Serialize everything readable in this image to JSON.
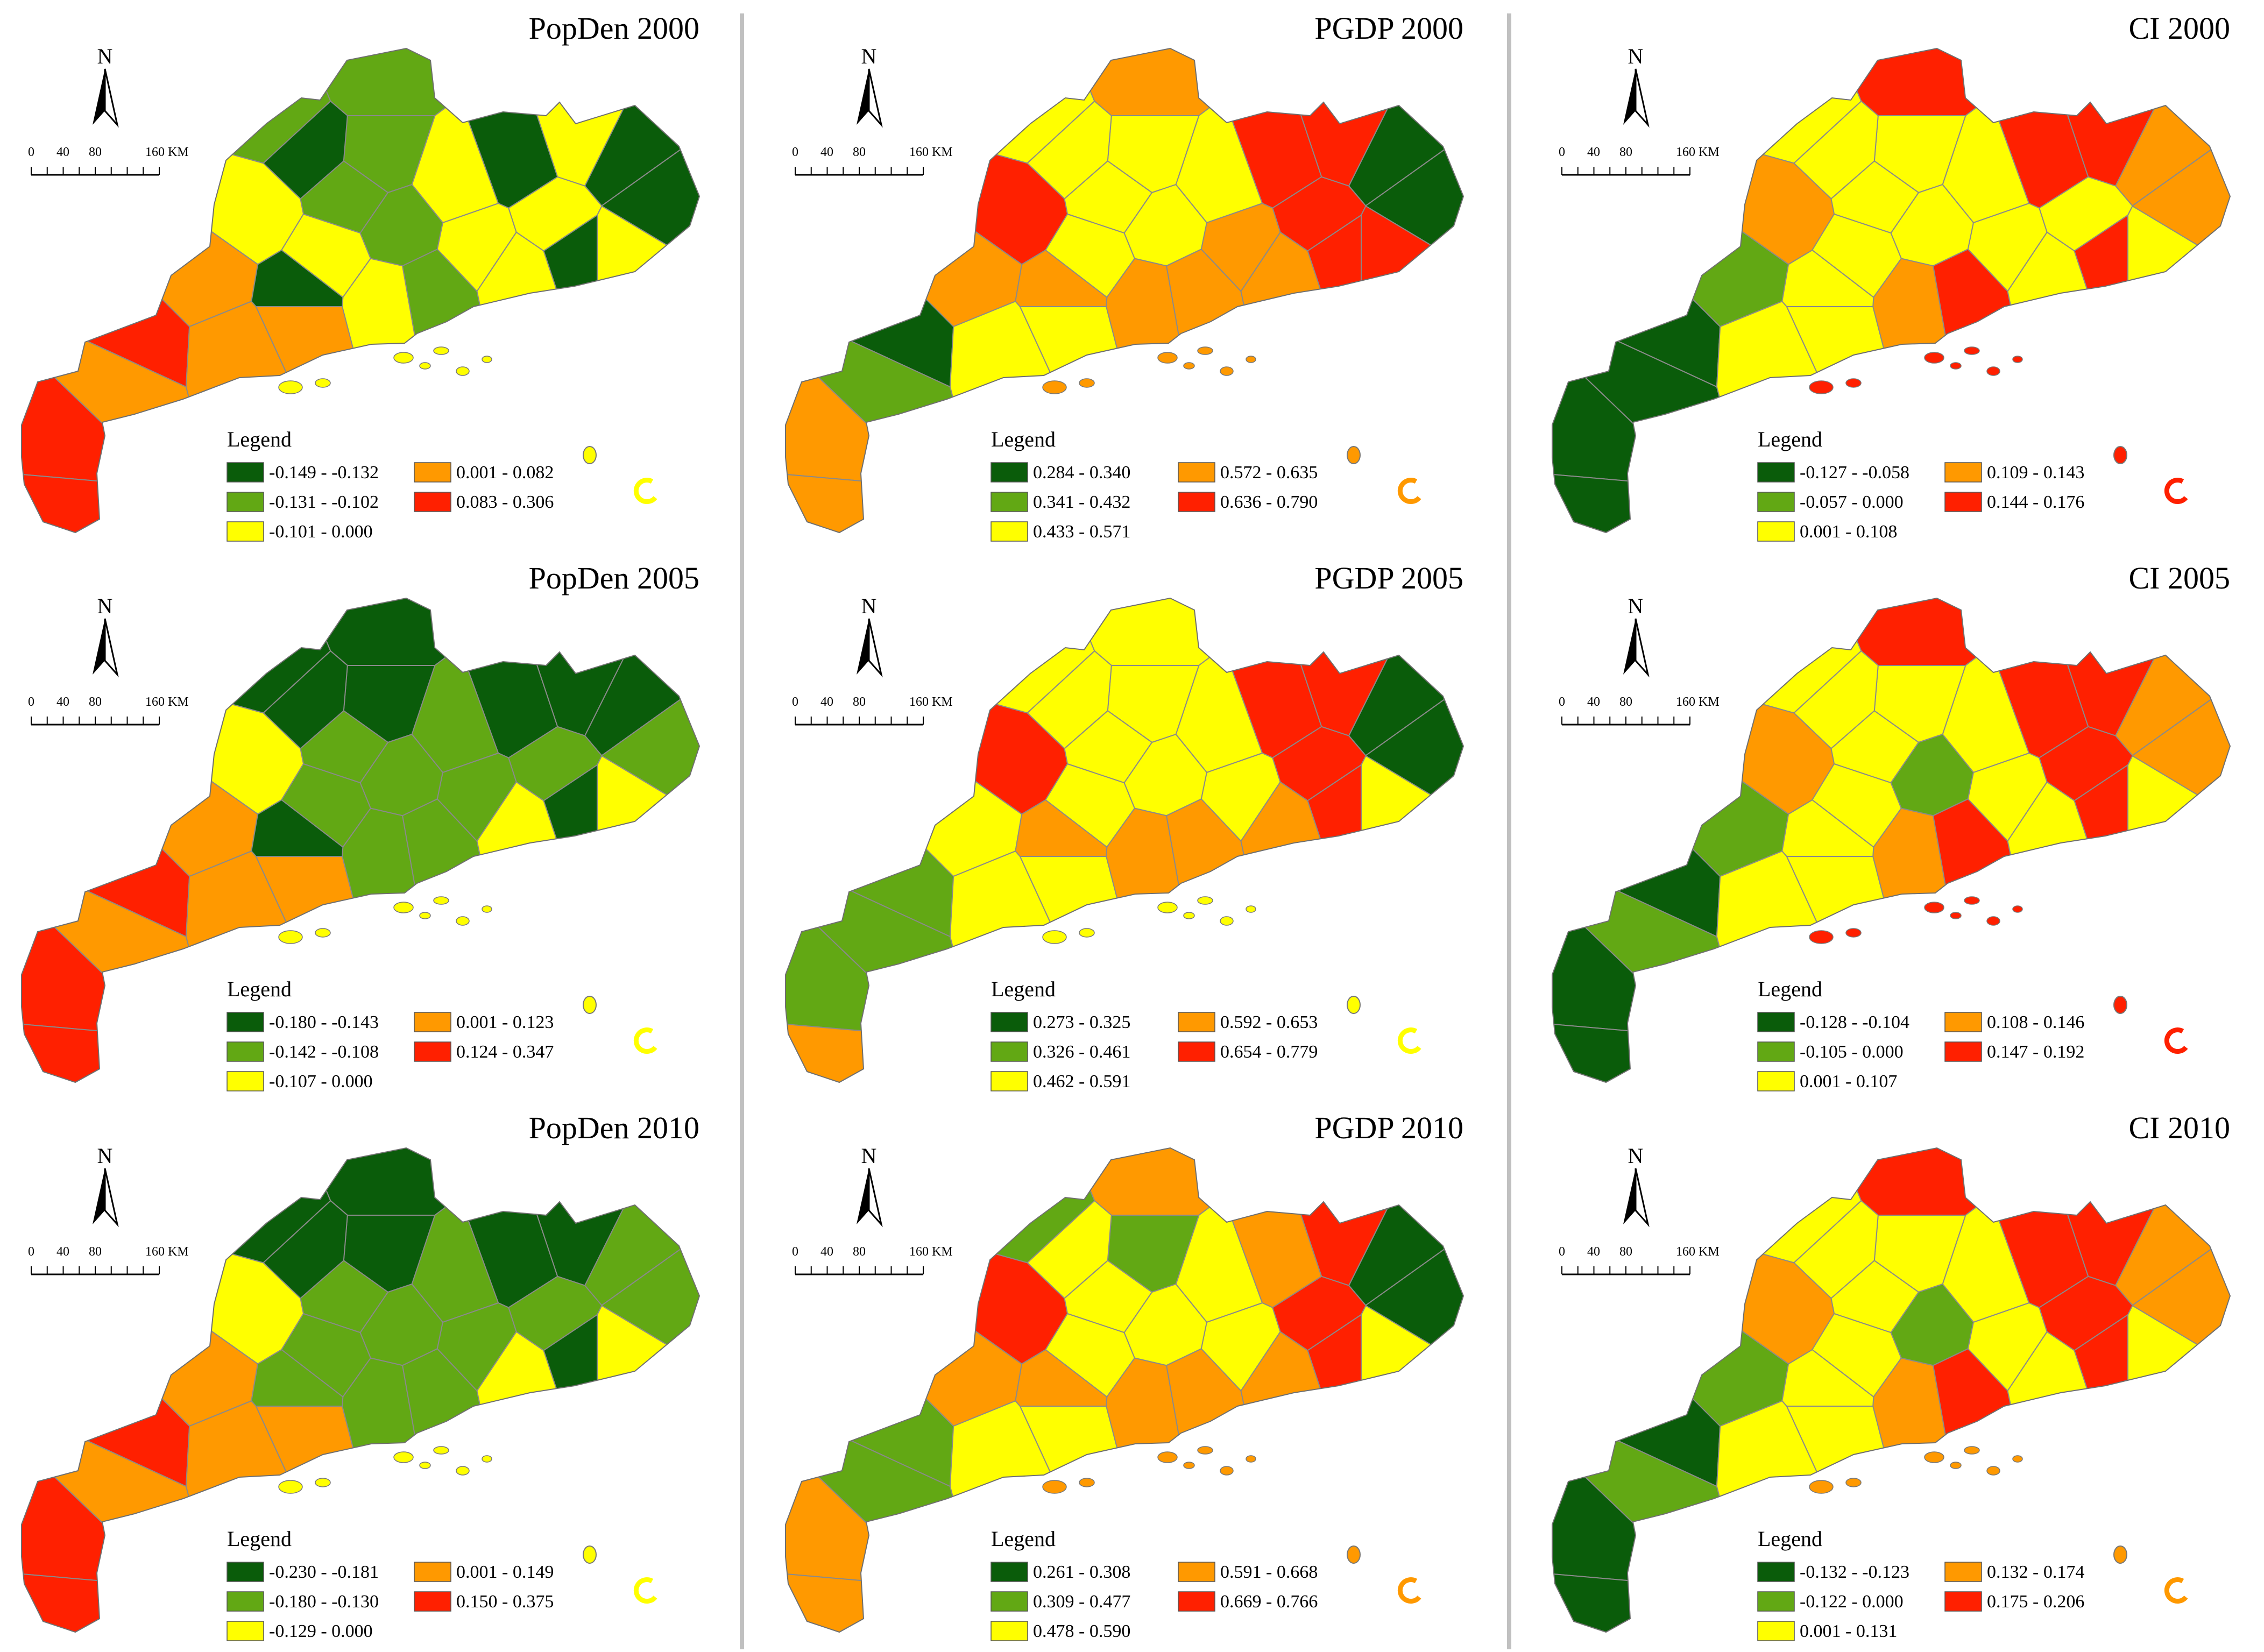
{
  "colors": {
    "dark_green": "#0a5c0a",
    "light_green": "#62a814",
    "yellow": "#ffff00",
    "orange": "#ff9900",
    "red": "#ff2000",
    "divider": "#c0c0c0",
    "border": "#8a8a8a"
  },
  "common": {
    "north": "N",
    "scale_0": "0",
    "scale_40": "40",
    "scale_80": "80",
    "scale_160": "160 KM",
    "legend_title": "Legend"
  },
  "panels": [
    {
      "title": "PopDen 2000",
      "legend": [
        "-0.149 - -0.132",
        "-0.131 - -0.102",
        "-0.101 - 0.000",
        "0.001 - 0.082",
        "0.083 - 0.306"
      ],
      "region_classes": [
        4,
        1,
        1,
        0,
        2,
        0,
        0,
        2,
        2,
        2,
        1,
        1,
        0,
        2,
        3,
        3,
        4,
        4,
        3,
        3,
        2,
        2,
        1,
        2,
        1,
        0,
        0,
        2
      ],
      "island_class": 2
    },
    {
      "title": "PGDP 2000",
      "legend": [
        "0.284 - 0.340",
        "0.341 - 0.432",
        "0.433 - 0.571",
        "0.572 - 0.635",
        "0.636 - 0.790"
      ],
      "region_classes": [
        0,
        2,
        3,
        4,
        4,
        0,
        0,
        3,
        4,
        2,
        2,
        2,
        2,
        4,
        3,
        1,
        3,
        3,
        2,
        2,
        2,
        3,
        3,
        3,
        2,
        3,
        4,
        4
      ],
      "island_class": 3
    },
    {
      "title": "CI 2000",
      "legend": [
        "-0.127 - -0.058",
        "-0.057 - 0.000",
        "0.001 - 0.108",
        "0.109 - 0.143",
        "0.144 - 0.176"
      ],
      "region_classes": [
        0,
        2,
        4,
        4,
        4,
        3,
        3,
        2,
        2,
        2,
        2,
        2,
        2,
        3,
        1,
        0,
        0,
        0,
        2,
        2,
        2,
        3,
        4,
        2,
        2,
        2,
        4,
        2
      ],
      "island_class": 4
    },
    {
      "title": "PopDen 2005",
      "legend": [
        "-0.180 - -0.143",
        "-0.142 - -0.108",
        "-0.107 - 0.000",
        "0.001 - 0.123",
        "0.124 - 0.347"
      ],
      "region_classes": [
        4,
        0,
        0,
        0,
        0,
        0,
        1,
        1,
        1,
        1,
        1,
        0,
        0,
        2,
        3,
        3,
        4,
        4,
        3,
        3,
        1,
        1,
        1,
        2,
        1,
        0,
        0,
        2
      ],
      "island_class": 2
    },
    {
      "title": "PGDP 2005",
      "legend": [
        "0.273 - 0.325",
        "0.326 - 0.461",
        "0.462 - 0.591",
        "0.592 - 0.653",
        "0.654 - 0.779"
      ],
      "region_classes": [
        1,
        2,
        2,
        4,
        4,
        0,
        0,
        2,
        4,
        2,
        2,
        2,
        2,
        4,
        2,
        1,
        1,
        3,
        2,
        2,
        2,
        3,
        3,
        3,
        2,
        3,
        4,
        2
      ],
      "island_class": 2
    },
    {
      "title": "CI 2005",
      "legend": [
        "-0.128 - -0.104",
        "-0.105 - 0.000",
        "0.001 - 0.107",
        "0.108 - 0.146",
        "0.147 - 0.192"
      ],
      "region_classes": [
        0,
        2,
        4,
        4,
        4,
        3,
        3,
        2,
        4,
        2,
        2,
        2,
        2,
        3,
        1,
        1,
        0,
        0,
        2,
        2,
        2,
        3,
        4,
        2,
        1,
        2,
        4,
        2
      ],
      "island_class": 4
    },
    {
      "title": "PopDen 2010",
      "legend": [
        "-0.230 - -0.181",
        "-0.180 - -0.130",
        "-0.129 - 0.000",
        "0.001 - 0.149",
        "0.150 - 0.375"
      ],
      "region_classes": [
        4,
        0,
        0,
        0,
        0,
        1,
        1,
        1,
        1,
        1,
        1,
        0,
        0,
        2,
        3,
        3,
        4,
        4,
        3,
        3,
        1,
        1,
        1,
        2,
        1,
        1,
        0,
        2
      ],
      "island_class": 2
    },
    {
      "title": "PGDP 2010",
      "legend": [
        "0.261 - 0.308",
        "0.309 - 0.477",
        "0.478 - 0.590",
        "0.591 - 0.668",
        "0.669 - 0.766"
      ],
      "region_classes": [
        1,
        1,
        3,
        3,
        4,
        0,
        0,
        2,
        4,
        2,
        2,
        1,
        2,
        4,
        3,
        1,
        3,
        3,
        2,
        2,
        2,
        3,
        3,
        3,
        2,
        3,
        4,
        2
      ],
      "island_class": 3
    },
    {
      "title": "CI 2010",
      "legend": [
        "-0.132 - -0.123",
        "-0.122 - 0.000",
        "0.001 - 0.131",
        "0.132 - 0.174",
        "0.175 - 0.206"
      ],
      "region_classes": [
        0,
        2,
        4,
        4,
        4,
        3,
        3,
        2,
        4,
        2,
        2,
        2,
        2,
        3,
        1,
        1,
        0,
        0,
        2,
        2,
        2,
        3,
        4,
        2,
        1,
        2,
        4,
        2
      ],
      "island_class": 3
    }
  ]
}
